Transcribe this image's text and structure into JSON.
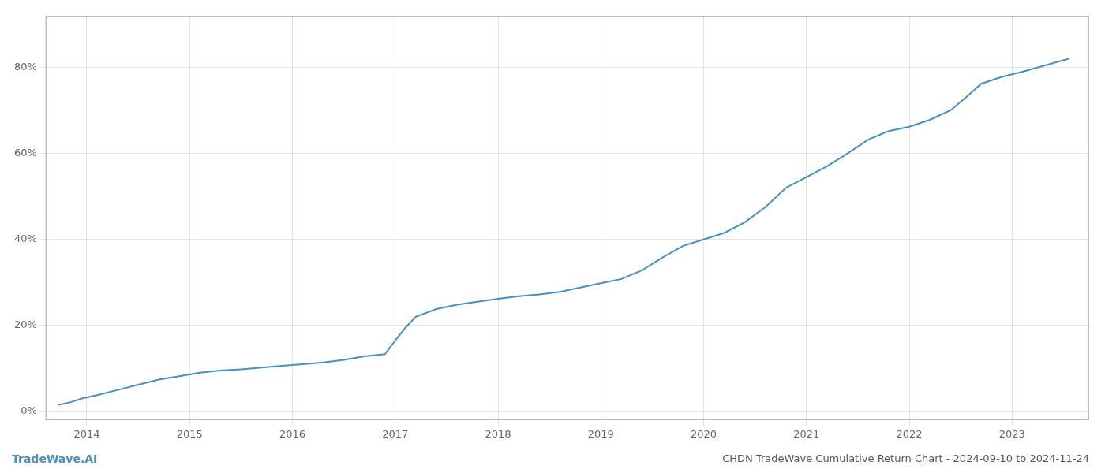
{
  "chart_data": {
    "type": "line",
    "title": "CHDN TradeWave Cumulative Return Chart - 2024-09-10 to 2024-11-24",
    "annotations": [
      "TradeWave.AI"
    ],
    "color": "#4a8fc0",
    "grid": true,
    "x": [
      2013.72,
      2013.85,
      2013.95,
      2014.1,
      2014.3,
      2014.5,
      2014.7,
      2014.9,
      2015.1,
      2015.3,
      2015.5,
      2015.7,
      2015.9,
      2016.1,
      2016.3,
      2016.5,
      2016.7,
      2016.9,
      2017.0,
      2017.1,
      2017.2,
      2017.4,
      2017.6,
      2017.8,
      2018.0,
      2018.2,
      2018.4,
      2018.6,
      2018.8,
      2019.0,
      2019.2,
      2019.4,
      2019.6,
      2019.8,
      2020.0,
      2020.2,
      2020.4,
      2020.6,
      2020.8,
      2021.0,
      2021.2,
      2021.4,
      2021.6,
      2021.8,
      2022.0,
      2022.2,
      2022.4,
      2022.55,
      2022.7,
      2022.9,
      2023.1,
      2023.3,
      2023.55
    ],
    "values": [
      0.015,
      0.022,
      0.03,
      0.038,
      0.05,
      0.062,
      0.074,
      0.082,
      0.09,
      0.095,
      0.098,
      0.102,
      0.106,
      0.11,
      0.114,
      0.12,
      0.128,
      0.133,
      0.165,
      0.195,
      0.22,
      0.238,
      0.248,
      0.255,
      0.262,
      0.268,
      0.272,
      0.278,
      0.288,
      0.298,
      0.308,
      0.328,
      0.358,
      0.385,
      0.4,
      0.415,
      0.44,
      0.475,
      0.52,
      0.545,
      0.57,
      0.6,
      0.632,
      0.652,
      0.662,
      0.678,
      0.7,
      0.73,
      0.762,
      0.778,
      0.79,
      0.803,
      0.82
    ],
    "xlim": [
      2013.6,
      2023.75
    ],
    "xticks": [
      2014,
      2015,
      2016,
      2017,
      2018,
      2019,
      2020,
      2021,
      2022,
      2023
    ],
    "ylim": [
      -0.02,
      0.92
    ],
    "yticks": [
      {
        "value": 0.0,
        "label": "0%"
      },
      {
        "value": 0.2,
        "label": "20%"
      },
      {
        "value": 0.4,
        "label": "40%"
      },
      {
        "value": 0.6,
        "label": "60%"
      },
      {
        "value": 0.8,
        "label": "80%"
      }
    ]
  }
}
